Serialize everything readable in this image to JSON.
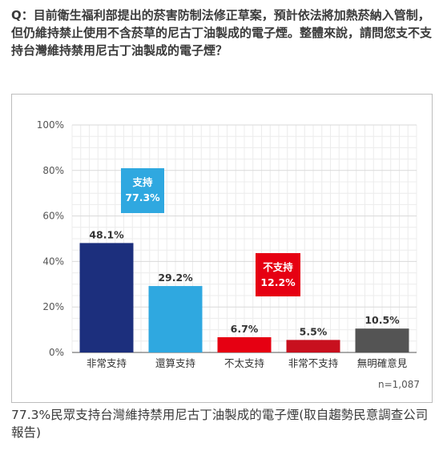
{
  "question": "Q：目前衛生福利部提出的菸害防制法修正草案，預計依法將加熱菸納入管制，但仍維持禁止使用不含菸草的尼古丁油製成的電子煙。整體來說，請問您支不支持台灣維持禁用尼古丁油製成的電子煙？",
  "caption": "77.3%民眾支持台灣維持禁用尼古丁油製成的電子煙(取自趨勢民意調查公司報告)",
  "chart_data": {
    "type": "bar",
    "categories": [
      "非常支持",
      "還算支持",
      "不太支持",
      "非常不支持",
      "無明確意見"
    ],
    "values": [
      48.1,
      29.2,
      6.7,
      5.5,
      10.5
    ],
    "value_labels": [
      "48.1%",
      "29.2%",
      "6.7%",
      "5.5%",
      "10.5%"
    ],
    "bar_colors": [
      "#1c2f7d",
      "#2fa8e0",
      "#e60012",
      "#c8101e",
      "#545454"
    ],
    "ylim": [
      0,
      100
    ],
    "yticks": [
      0,
      20,
      40,
      60,
      80,
      100
    ],
    "ytick_labels": [
      "0%",
      "20%",
      "40%",
      "60%",
      "80%",
      "100%"
    ],
    "grid": true,
    "note": "n=1,087",
    "annotations": [
      {
        "label": "支持",
        "value": "77.3%",
        "color": "#2fa8e0"
      },
      {
        "label": "不支持",
        "value": "12.2%",
        "color": "#e60012"
      }
    ]
  }
}
